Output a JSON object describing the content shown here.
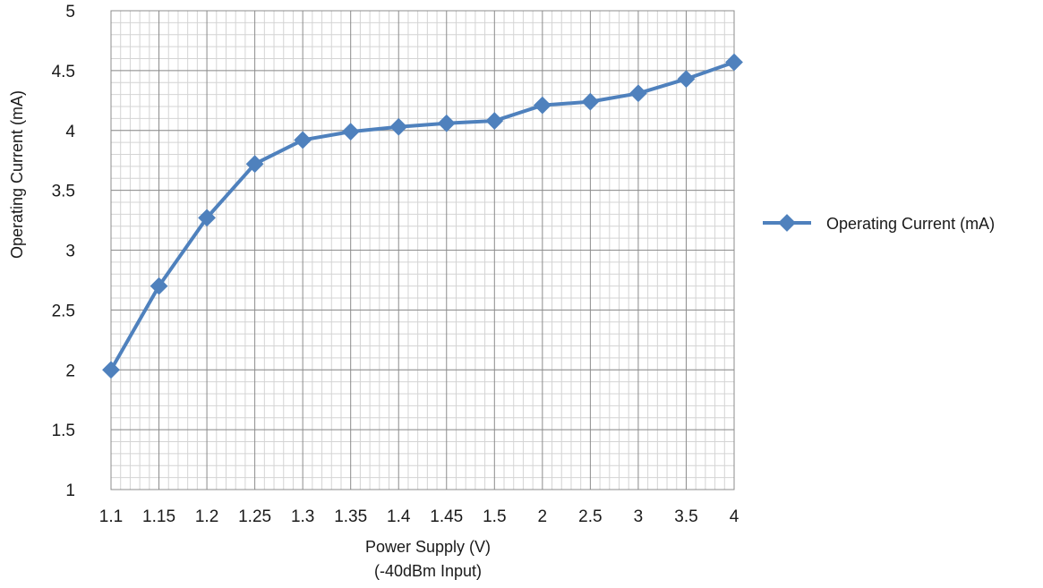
{
  "chart_data": {
    "type": "line",
    "categories": [
      "1.1",
      "1.15",
      "1.2",
      "1.25",
      "1.3",
      "1.35",
      "1.4",
      "1.45",
      "1.5",
      "2",
      "2.5",
      "3",
      "3.5",
      "4"
    ],
    "series": [
      {
        "name": "Operating Current (mA)",
        "values": [
          2.0,
          2.7,
          3.27,
          3.72,
          3.92,
          3.99,
          4.03,
          4.06,
          4.08,
          4.21,
          4.24,
          4.31,
          4.43,
          4.57
        ],
        "color": "#4f81bd",
        "marker": "diamond"
      }
    ],
    "xlabel": "Power Supply (V)",
    "xlabel_line2": "(-40dBm Input)",
    "ylabel": "Operating Current (mA)",
    "ylim": [
      1,
      5
    ],
    "yticks": [
      "1",
      "1.5",
      "2",
      "2.5",
      "3",
      "3.5",
      "4",
      "4.5",
      "5"
    ],
    "y_major_step": 0.5,
    "y_minor_step": 0.1,
    "grid": true,
    "legend_position": "right"
  }
}
